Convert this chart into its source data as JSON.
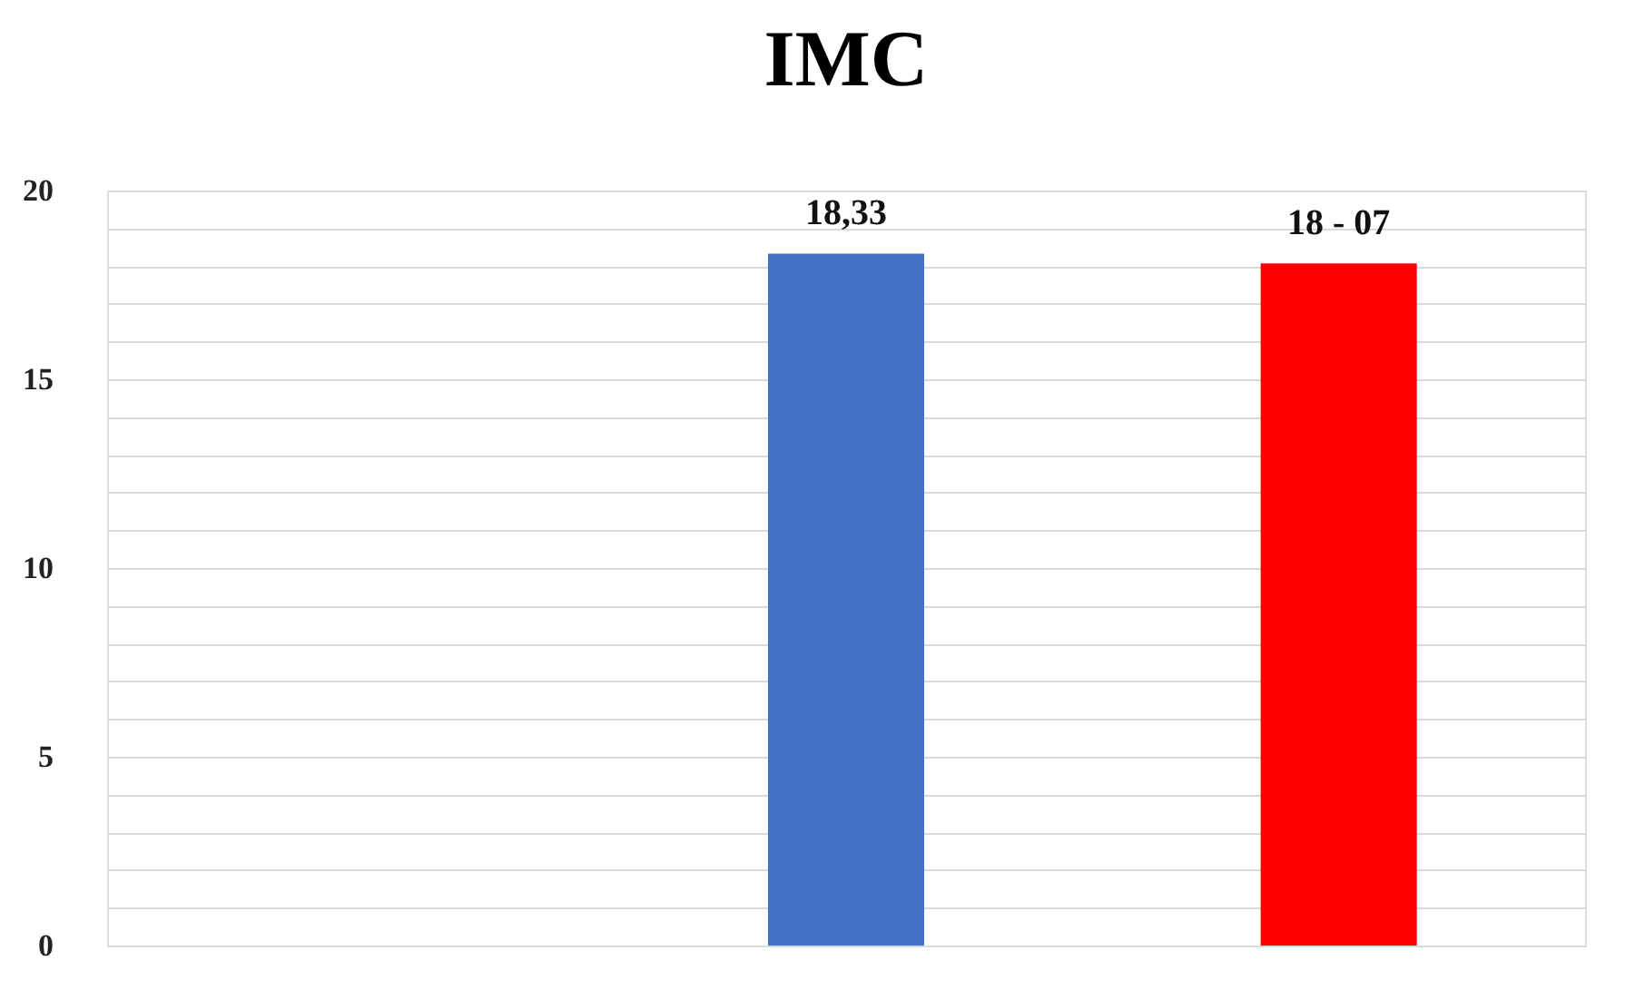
{
  "chart_data": {
    "type": "bar",
    "title": "IMC",
    "categories": [
      null,
      null,
      null
    ],
    "values": [
      null,
      18.33,
      18.07
    ],
    "colors": [
      "#4472c4",
      "#4472c4",
      "#ff0000"
    ],
    "value_labels": [
      null,
      "18,33",
      "18 - 07"
    ],
    "ylim": [
      0,
      20
    ],
    "yticks": [
      0,
      {
        "value": 1,
        "label": null
      },
      {
        "value": 2,
        "label": null
      },
      {
        "value": 3,
        "label": null
      },
      {
        "value": 4,
        "label": null
      },
      5,
      {
        "value": 6,
        "label": null
      },
      {
        "value": 7,
        "label": null
      },
      {
        "value": 8,
        "label": null
      },
      {
        "value": 9,
        "label": null
      },
      10,
      {
        "value": 11,
        "label": null
      },
      {
        "value": 12,
        "label": null
      },
      {
        "value": 13,
        "label": null
      },
      {
        "value": 14,
        "label": null
      },
      15,
      {
        "value": 16,
        "label": null
      },
      {
        "value": 17,
        "label": null
      },
      {
        "value": 18,
        "label": null
      },
      {
        "value": 19,
        "label": null
      },
      20
    ],
    "grid": "y"
  }
}
